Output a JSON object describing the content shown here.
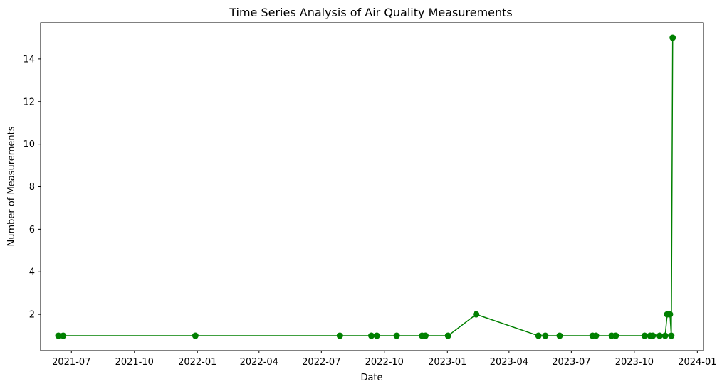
{
  "chart_data": {
    "type": "line",
    "title": "Time Series Analysis of Air Quality Measurements",
    "xlabel": "Date",
    "ylabel": "Number of Measurements",
    "x_ticks": [
      "2021-07-01",
      "2021-10-01",
      "2022-01-01",
      "2022-04-01",
      "2022-07-01",
      "2022-10-01",
      "2023-01-01",
      "2023-04-01",
      "2023-07-01",
      "2023-10-01",
      "2024-01-01"
    ],
    "x_tick_labels": [
      "2021-07",
      "2021-10",
      "2022-01",
      "2022-04",
      "2022-07",
      "2022-10",
      "2023-01",
      "2023-04",
      "2023-07",
      "2023-10",
      "2024-01"
    ],
    "xlim": [
      "2021-05-17",
      "2024-01-10"
    ],
    "y_ticks": [
      2,
      4,
      6,
      8,
      10,
      12,
      14
    ],
    "y_tick_labels": [
      "2",
      "4",
      "6",
      "8",
      "10",
      "12",
      "14"
    ],
    "ylim": [
      0.3,
      15.7
    ],
    "grid": false,
    "color": "#008000",
    "marker": "circle",
    "series": [
      {
        "x": [
          "2021-06-12",
          "2021-06-19",
          "2021-12-29",
          "2022-07-28",
          "2022-09-12",
          "2022-09-20",
          "2022-10-19",
          "2022-11-25",
          "2022-11-30",
          "2023-01-02",
          "2023-02-12",
          "2023-05-14",
          "2023-05-24",
          "2023-06-14",
          "2023-08-01",
          "2023-08-06",
          "2023-08-29",
          "2023-09-04",
          "2023-10-16",
          "2023-10-24",
          "2023-10-28",
          "2023-11-07",
          "2023-11-15",
          "2023-11-18",
          "2023-11-22",
          "2023-11-24",
          "2023-11-26"
        ],
        "values": [
          1,
          1,
          1,
          1,
          1,
          1,
          1,
          1,
          1,
          1,
          2,
          1,
          1,
          1,
          1,
          1,
          1,
          1,
          1,
          1,
          1,
          1,
          1,
          2,
          2,
          1,
          15
        ]
      }
    ]
  }
}
